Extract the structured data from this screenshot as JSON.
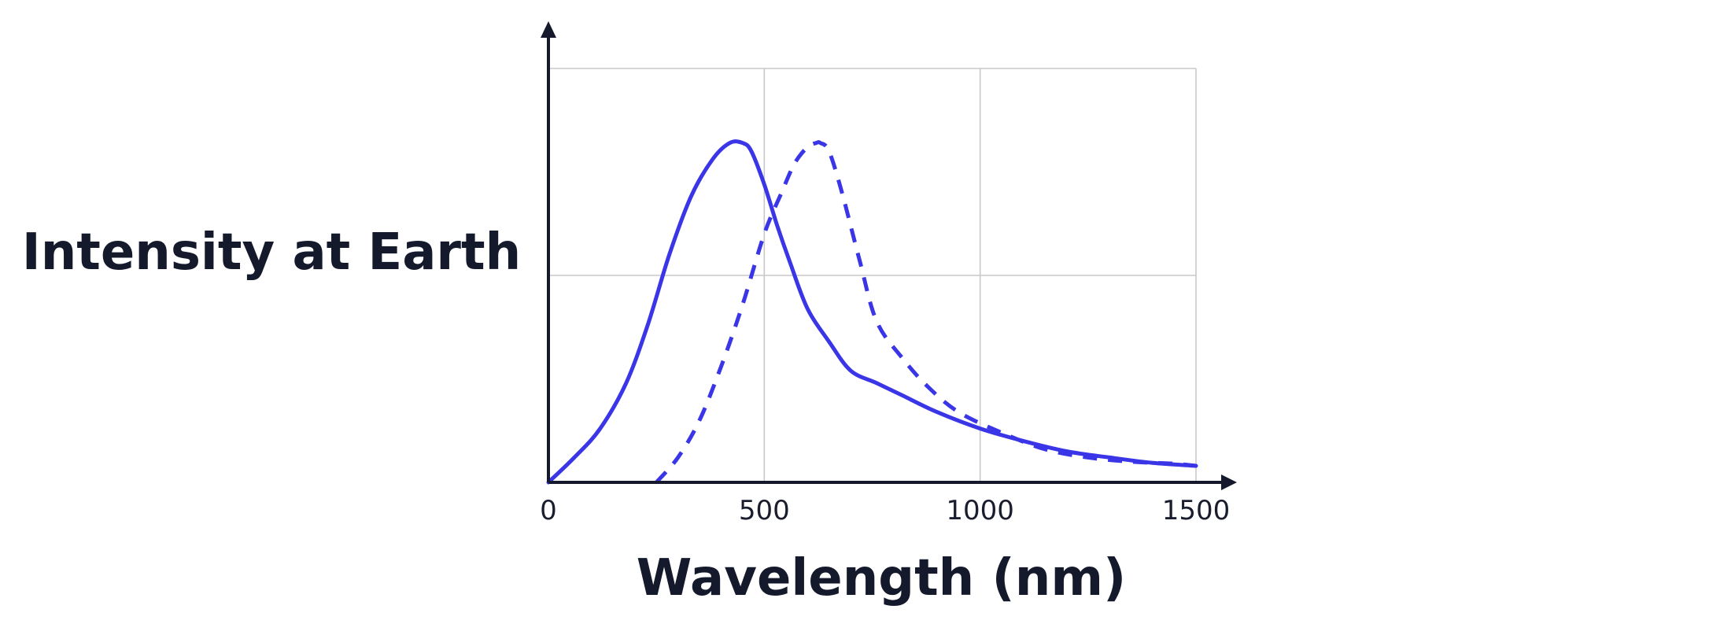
{
  "chart_data": {
    "type": "line",
    "title": "",
    "xlabel": "Wavelength (nm)",
    "ylabel": "Intensity at Earth",
    "xlim": [
      0,
      1500
    ],
    "ylim": [
      0,
      1
    ],
    "x_ticks": [
      0,
      500,
      1000,
      1500
    ],
    "x_tick_labels": [
      "0",
      "500",
      "1000",
      "1500"
    ],
    "y_ticks": [
      0,
      0.5,
      1
    ],
    "y_tick_labels": [],
    "grid": true,
    "colors": {
      "series": "#3a35e6",
      "axis": "#141a2c",
      "grid": "#c8c8c8",
      "text": "#141a2c"
    },
    "series": [
      {
        "name": "solid",
        "style": "solid",
        "x": [
          0,
          60,
          120,
          180,
          230,
          280,
          330,
          380,
          420,
          450,
          470,
          500,
          530,
          560,
          600,
          650,
          700,
          760,
          820,
          900,
          1000,
          1100,
          1200,
          1300,
          1400,
          1500
        ],
        "y": [
          0.0,
          0.06,
          0.13,
          0.24,
          0.38,
          0.55,
          0.69,
          0.78,
          0.82,
          0.82,
          0.8,
          0.72,
          0.62,
          0.53,
          0.42,
          0.34,
          0.27,
          0.24,
          0.21,
          0.17,
          0.13,
          0.1,
          0.075,
          0.06,
          0.047,
          0.04
        ]
      },
      {
        "name": "dashed",
        "style": "dashed",
        "x": [
          250,
          300,
          350,
          400,
          450,
          500,
          540,
          570,
          600,
          620,
          630,
          650,
          680,
          720,
          760,
          820,
          880,
          950,
          1050,
          1150,
          1250,
          1350,
          1450,
          1500
        ],
        "y": [
          0.0,
          0.06,
          0.15,
          0.28,
          0.43,
          0.6,
          0.7,
          0.77,
          0.81,
          0.82,
          0.82,
          0.8,
          0.7,
          0.54,
          0.39,
          0.3,
          0.23,
          0.17,
          0.12,
          0.08,
          0.06,
          0.05,
          0.045,
          0.04
        ]
      }
    ]
  }
}
